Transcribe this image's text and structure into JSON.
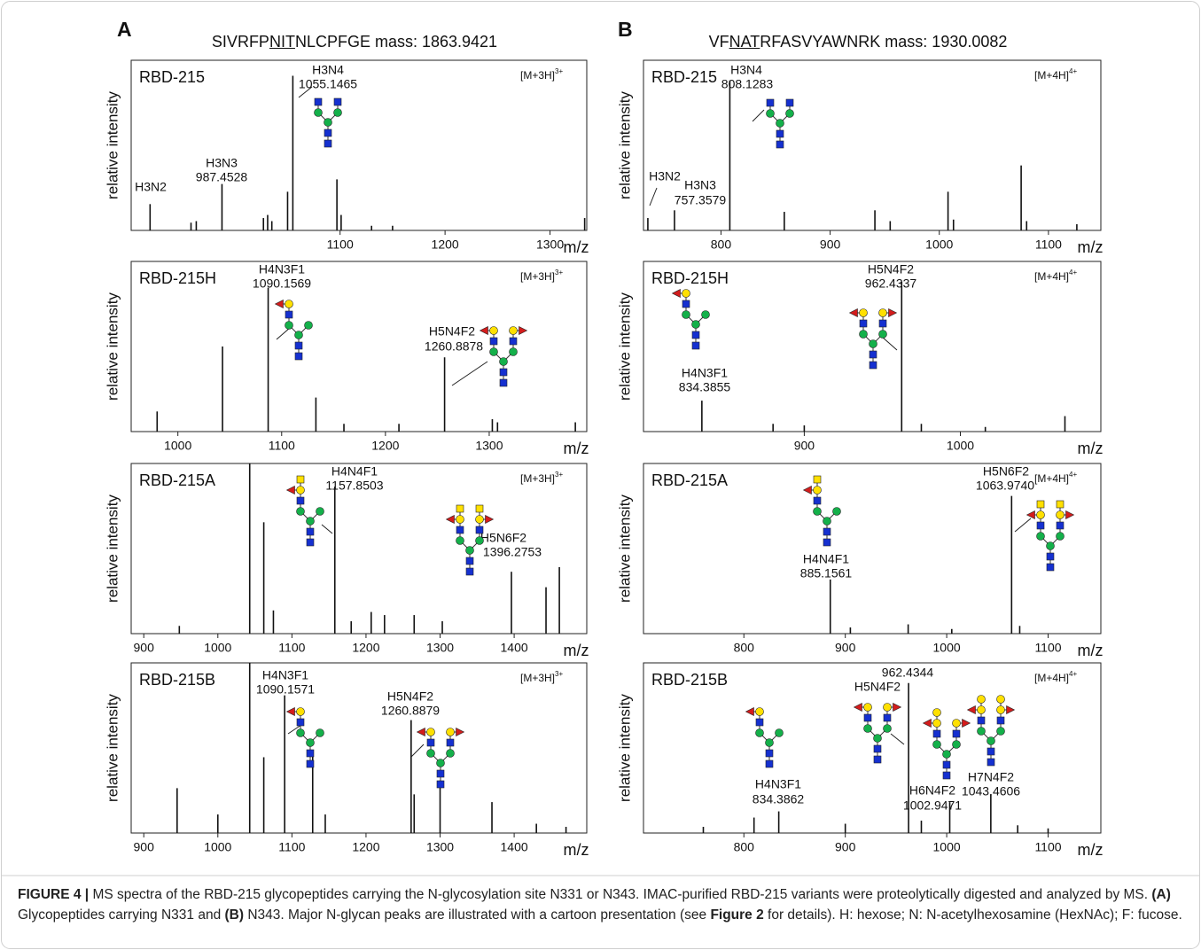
{
  "panels": [
    {
      "letter": "A",
      "title_parts": [
        "SIVRFP",
        "NIT",
        "NLCPFGE mass: 1863.9421"
      ]
    },
    {
      "letter": "B",
      "title_parts": [
        "VF",
        "NAT",
        "RFASVYAWNRK mass: 1930.0082"
      ]
    }
  ],
  "chart_data": [
    {
      "type": "spectrum",
      "title": "RBD-215",
      "ion": "[M+3H]",
      "charge": "3+",
      "xlabel": "m/z",
      "ylabel": "relative intensity",
      "xlim": [
        901,
        1335
      ],
      "xticks": [
        1100,
        1200,
        1300
      ],
      "ylim": [
        0,
        110
      ],
      "color": "#111111",
      "x": [
        919,
        958,
        963,
        987.5,
        1027,
        1031,
        1035,
        1050,
        1055,
        1097,
        1101,
        1130,
        1150,
        1333
      ],
      "values": [
        17,
        5,
        6,
        30,
        8,
        10,
        6,
        25,
        100,
        33,
        10,
        3,
        3,
        8
      ],
      "annotations": [
        {
          "label": "H3N4",
          "mz": "1055.1465"
        },
        {
          "label": "H3N3",
          "mz": "987.4528"
        },
        {
          "label": "H3N2"
        }
      ]
    },
    {
      "type": "spectrum",
      "title": "RBD-215",
      "ion": "[M+4H]",
      "charge": "4+",
      "xlabel": "m/z",
      "ylabel": "relative intensity",
      "xlim": [
        729,
        1148
      ],
      "xticks": [
        800,
        900,
        1000,
        1100
      ],
      "ylim": [
        0,
        110
      ],
      "color": "#111111",
      "x": [
        733,
        757.4,
        808.1,
        858,
        941,
        955,
        1008,
        1013,
        1075,
        1080,
        1126
      ],
      "values": [
        8,
        13,
        97,
        12,
        13,
        6,
        25,
        7,
        42,
        6,
        4
      ],
      "annotations": [
        {
          "label": "H3N4",
          "mz": "808.1283"
        },
        {
          "label": "H3N2"
        },
        {
          "label": "H3N3",
          "mz": "757.3579"
        }
      ]
    },
    {
      "type": "spectrum",
      "title": "RBD-215H",
      "ion": "[M+3H]",
      "charge": "3+",
      "xlabel": "m/z",
      "ylabel": "relative intensity",
      "xlim": [
        955,
        1394
      ],
      "xticks": [
        1000,
        1100,
        1200,
        1300
      ],
      "ylim": [
        0,
        110
      ],
      "color": "#111111",
      "x": [
        980,
        1043,
        1087,
        1133,
        1160,
        1213,
        1257,
        1303,
        1308,
        1383
      ],
      "values": [
        13,
        55,
        93,
        22,
        5,
        5,
        48,
        8,
        6,
        6
      ],
      "annotations": [
        {
          "label": "H4N3F1",
          "mz": "1090.1569"
        },
        {
          "label": "H5N4F2",
          "mz": "1260.8878"
        }
      ]
    },
    {
      "type": "spectrum",
      "title": "RBD-215H",
      "ion": "[M+4H]",
      "charge": "4+",
      "xlabel": "m/z",
      "ylabel": "relative intensity",
      "xlim": [
        797,
        1090
      ],
      "xticks": [
        900,
        1000
      ],
      "ylim": [
        0,
        110
      ],
      "color": "#111111",
      "x": [
        834.4,
        880,
        900,
        962.4,
        975,
        1016,
        1067
      ],
      "values": [
        20,
        5,
        4,
        97,
        5,
        3,
        10
      ],
      "annotations": [
        {
          "label": "H5N4F2",
          "mz": "962.4337"
        },
        {
          "label": "H4N3F1",
          "mz": "834.3855"
        }
      ]
    },
    {
      "type": "spectrum",
      "title": "RBD-215A",
      "ion": "[M+3H]",
      "charge": "3+",
      "xlabel": "m/z",
      "ylabel": "relative intensity",
      "xlim": [
        883,
        1498
      ],
      "xticks": [
        900,
        1000,
        1100,
        1200,
        1300,
        1400
      ],
      "ylim": [
        0,
        110
      ],
      "color": "#111111",
      "x": [
        948,
        1043,
        1062,
        1075,
        1157.9,
        1180,
        1207,
        1225,
        1265,
        1303,
        1396.3,
        1443,
        1461
      ],
      "values": [
        5,
        110,
        72,
        15,
        95,
        8,
        14,
        12,
        12,
        8,
        40,
        30,
        43
      ],
      "annotations": [
        {
          "label": "H4N4F1",
          "mz": "1157.8503"
        },
        {
          "label": "H5N6F2",
          "mz": "1396.2753"
        }
      ]
    },
    {
      "type": "spectrum",
      "title": "RBD-215A",
      "ion": "[M+4H]",
      "charge": "4+",
      "xlabel": "m/z",
      "ylabel": "relative intensity",
      "xlim": [
        701,
        1152
      ],
      "xticks": [
        800,
        900,
        1000,
        1100
      ],
      "ylim": [
        0,
        110
      ],
      "color": "#111111",
      "x": [
        885.2,
        905,
        962,
        1005,
        1064,
        1072
      ],
      "values": [
        35,
        4,
        6,
        3,
        89,
        5
      ],
      "annotations": [
        {
          "label": "H5N6F2",
          "mz": "1063.9740"
        },
        {
          "label": "H4N4F1",
          "mz": "885.1561"
        }
      ]
    },
    {
      "type": "spectrum",
      "title": "RBD-215B",
      "ion": "[M+3H]",
      "charge": "3+",
      "xlabel": "m/z",
      "ylabel": "relative intensity",
      "xlim": [
        883,
        1498
      ],
      "xticks": [
        900,
        1000,
        1100,
        1200,
        1300,
        1400
      ],
      "ylim": [
        0,
        110
      ],
      "color": "#111111",
      "x": [
        945,
        1000,
        1043,
        1062,
        1090.2,
        1128,
        1145,
        1260.9,
        1265,
        1300,
        1370,
        1430,
        1470
      ],
      "values": [
        29,
        12,
        110,
        49,
        89,
        52,
        12,
        73,
        25,
        34,
        20,
        6,
        4
      ],
      "annotations": [
        {
          "label": "H4N3F1",
          "mz": "1090.1571"
        },
        {
          "label": "H5N4F2",
          "mz": "1260.8879"
        }
      ]
    },
    {
      "type": "spectrum",
      "title": "RBD-215B",
      "ion": "[M+4H]",
      "charge": "4+",
      "xlabel": "m/z",
      "ylabel": "relative intensity",
      "xlim": [
        701,
        1152
      ],
      "xticks": [
        800,
        900,
        1000,
        1100
      ],
      "ylim": [
        0,
        110
      ],
      "color": "#111111",
      "x": [
        760,
        810,
        834.4,
        900,
        962.4,
        975,
        1003,
        1043.5,
        1070,
        1100
      ],
      "values": [
        4,
        10,
        14,
        6,
        97,
        8,
        20,
        25,
        5,
        3
      ],
      "annotations": [
        {
          "label": "H5N4F2",
          "mz": "962.4344"
        },
        {
          "label": "H4N3F1",
          "mz": "834.3862"
        },
        {
          "label": "H6N4F2",
          "mz": "1002.9471"
        },
        {
          "label": "H7N4F2",
          "mz": "1043.4606"
        }
      ]
    }
  ],
  "caption": [
    {
      "text": "FIGURE 4 |",
      "bold": true
    },
    {
      "text": " MS spectra of the RBD-215 glycopeptides carrying the N-glycosylation site N331 or N343. IMAC-purified RBD-215 variants were proteolytically digested and analyzed by MS. ",
      "bold": false
    },
    {
      "text": "(A)",
      "bold": true
    },
    {
      "text": " Glycopeptides carrying N331 and ",
      "bold": false
    },
    {
      "text": "(B)",
      "bold": true
    },
    {
      "text": " N343. Major N-glycan peaks are illustrated with a cartoon presentation (see ",
      "bold": false
    },
    {
      "text": "Figure 2",
      "bold": true
    },
    {
      "text": " for details). H: hexose; N: N-acetylhexosamine (HexNAc); F: fucose.",
      "bold": false
    }
  ]
}
